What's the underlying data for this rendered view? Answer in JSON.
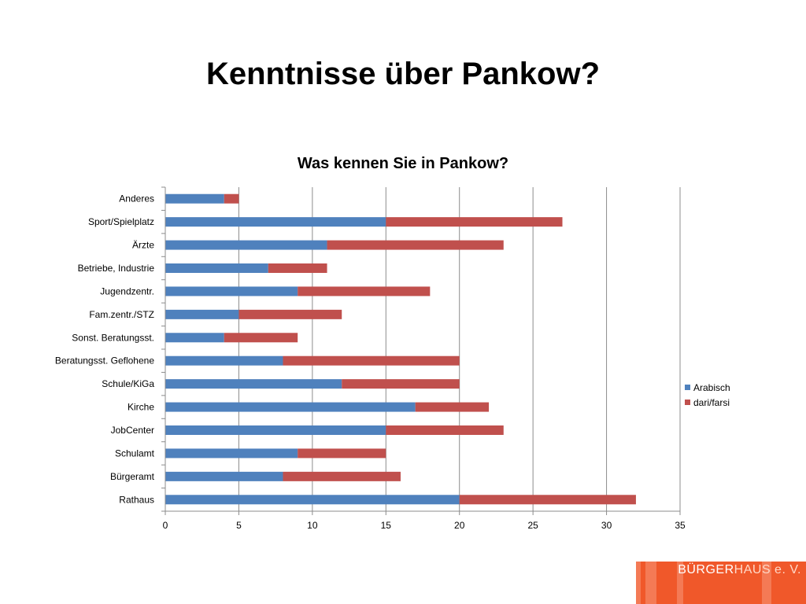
{
  "slide": {
    "title": "Kenntnisse über Pankow?"
  },
  "chart_data": {
    "type": "bar",
    "orientation": "horizontal",
    "stacked": true,
    "title": "Was kennen Sie in Pankow?",
    "categories": [
      "Rathaus",
      "Bürgeramt",
      "Schulamt",
      "JobCenter",
      "Kirche",
      "Schule/KiGa",
      "Beratungsst. Geflohene",
      "Sonst. Beratungsst.",
      "Fam.zentr./STZ",
      "Jugendzentr.",
      "Betriebe, Industrie",
      "Ärzte",
      "Sport/Spielplatz",
      "Anderes"
    ],
    "series": [
      {
        "name": "Arabisch",
        "color": "#4f81bd",
        "values": [
          20,
          8,
          9,
          15,
          17,
          12,
          8,
          4,
          5,
          9,
          7,
          11,
          15,
          4
        ]
      },
      {
        "name": "dari/farsi",
        "color": "#c0504d",
        "values": [
          12,
          8,
          6,
          8,
          5,
          8,
          12,
          5,
          7,
          9,
          4,
          12,
          12,
          1
        ]
      }
    ],
    "xlim": [
      0,
      35
    ],
    "xticks": [
      "0",
      "5",
      "10",
      "15",
      "20",
      "25",
      "30",
      "35"
    ],
    "grid": true,
    "legend": "right"
  },
  "logo": {
    "text_bold": "BÜRGER",
    "text_light": "HAUS e. V."
  }
}
